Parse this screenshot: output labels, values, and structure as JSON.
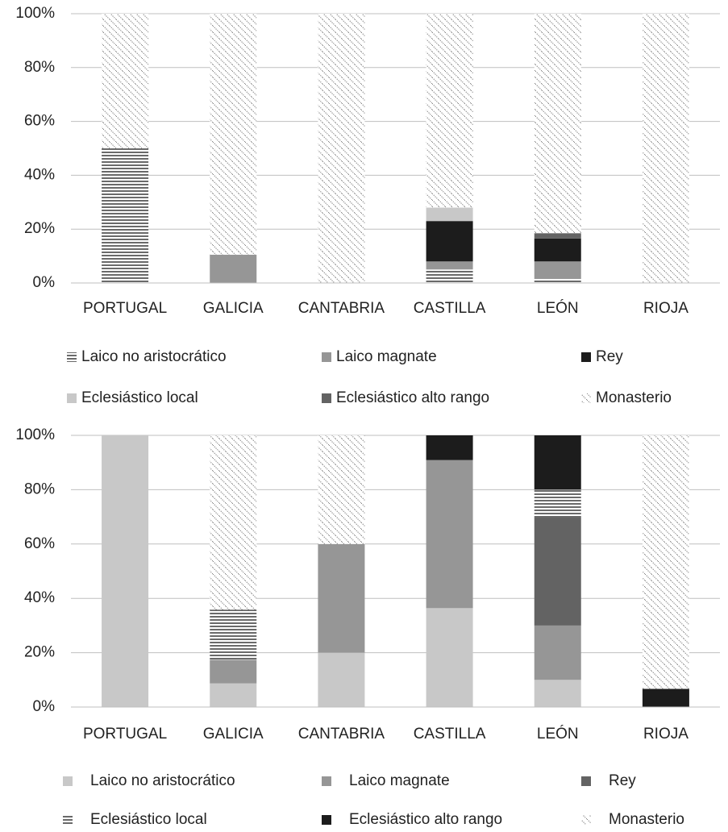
{
  "chart_data": [
    {
      "type": "stacked_bar",
      "categories": [
        "PORTUGAL",
        "GALICIA",
        "CANTABRIA",
        "CASTILLA",
        "LEÓN",
        "RIOJA"
      ],
      "series": [
        {
          "name": "Laico no aristocrático",
          "color": "#1a1a1a",
          "pattern": "hlines",
          "values": [
            50,
            0,
            0,
            5,
            1.5,
            0
          ]
        },
        {
          "name": "Laico magnate",
          "color": "#969696",
          "values": [
            0,
            10.5,
            0,
            3,
            6.5,
            0
          ]
        },
        {
          "name": "Rey",
          "color": "#1c1c1c",
          "values": [
            0,
            0,
            0,
            15,
            8.5,
            0
          ]
        },
        {
          "name": "Eclesiástico local",
          "color": "#c8c8c8",
          "values": [
            0,
            0,
            0,
            5,
            0,
            0
          ]
        },
        {
          "name": "Eclesiástico alto rango",
          "color": "#636363",
          "values": [
            0,
            0,
            0,
            0,
            2,
            0
          ]
        },
        {
          "name": "Monasterio",
          "color": "#333333",
          "pattern": "dots",
          "values": [
            50,
            89.5,
            100,
            72,
            81.5,
            100
          ]
        }
      ],
      "ylim": [
        0,
        100
      ],
      "yticks": [
        {
          "value": 0,
          "label": "0%"
        },
        {
          "value": 20,
          "label": "20%"
        },
        {
          "value": 40,
          "label": "40%"
        },
        {
          "value": 60,
          "label": "60%"
        },
        {
          "value": 80,
          "label": "80%"
        },
        {
          "value": 100,
          "label": "100%"
        }
      ],
      "grid": true,
      "legend": "bottom"
    },
    {
      "type": "stacked_bar",
      "categories": [
        "PORTUGAL",
        "GALICIA",
        "CANTABRIA",
        "CASTILLA",
        "LEÓN",
        "RIOJA"
      ],
      "series": [
        {
          "name": "Laico no aristocrático",
          "color": "#c8c8c8",
          "values": [
            100,
            8.7,
            20,
            36.4,
            10,
            0
          ]
        },
        {
          "name": "Laico magnate",
          "color": "#969696",
          "values": [
            0,
            8.7,
            40,
            54.5,
            20,
            0
          ]
        },
        {
          "name": "Rey",
          "color": "#636363",
          "values": [
            0,
            0,
            0,
            0,
            40,
            0
          ]
        },
        {
          "name": "Eclesiástico local",
          "color": "#1a1a1a",
          "pattern": "hlines",
          "values": [
            0,
            18.4,
            0,
            0,
            10,
            0
          ]
        },
        {
          "name": "Eclesiástico alto rango",
          "color": "#1c1c1c",
          "values": [
            0,
            0,
            0,
            9.1,
            20,
            6.7
          ]
        },
        {
          "name": "Monasterio",
          "color": "#333333",
          "pattern": "dots",
          "values": [
            0,
            64.2,
            40,
            0,
            0,
            93.3
          ]
        }
      ],
      "ylim": [
        0,
        100
      ],
      "yticks": [
        {
          "value": 0,
          "label": "0%"
        },
        {
          "value": 20,
          "label": "20%"
        },
        {
          "value": 40,
          "label": "40%"
        },
        {
          "value": 60,
          "label": "60%"
        },
        {
          "value": 80,
          "label": "80%"
        },
        {
          "value": 100,
          "label": "100%"
        }
      ],
      "grid": true,
      "legend": "bottom"
    }
  ]
}
